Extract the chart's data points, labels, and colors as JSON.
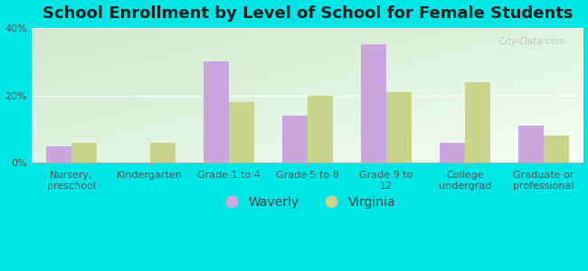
{
  "title": "School Enrollment by Level of School for Female Students",
  "categories": [
    "Nursery,\npreschool",
    "Kindergarten",
    "Grade 1 to 4",
    "Grade 5 to 8",
    "Grade 9 to\n12",
    "College\nundergrad",
    "Graduate or\nprofessional"
  ],
  "waverly": [
    5,
    0,
    30,
    14,
    35,
    6,
    11
  ],
  "virginia": [
    6,
    6,
    18,
    20,
    21,
    24,
    8
  ],
  "waverly_color": "#c9a8e0",
  "virginia_color": "#c8d48a",
  "bg_color": "#00e5e5",
  "plot_bg_top_left": "#cce8cc",
  "plot_bg_bottom_right": "#f5fff5",
  "ylim": [
    0,
    40
  ],
  "yticks": [
    0,
    20,
    40
  ],
  "ytick_labels": [
    "0%",
    "20%",
    "40%"
  ],
  "legend_labels": [
    "Waverly",
    "Virginia"
  ],
  "bar_width": 0.32,
  "title_fontsize": 13,
  "tick_fontsize": 8,
  "legend_fontsize": 10,
  "watermark": "City-Data.com"
}
